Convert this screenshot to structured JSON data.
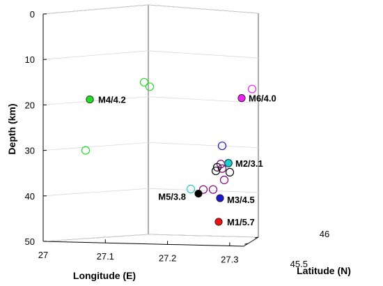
{
  "chart_data": {
    "type": "scatter",
    "projection": "3d",
    "grid": true,
    "axes": {
      "depth": {
        "label": "Depth (km)",
        "range": [
          0,
          50
        ],
        "reversed": true,
        "ticks": [
          "0",
          "10",
          "20",
          "30",
          "40",
          "50"
        ]
      },
      "longitude": {
        "label": "Longitude (E)",
        "range": [
          27.0,
          27.3
        ],
        "ticks": [
          "27",
          "27.1",
          "27.2",
          "27.3"
        ]
      },
      "latitude": {
        "label": "Latitude (N)",
        "range": [
          45.5,
          46.0
        ],
        "ticks": [
          "45.5",
          "46"
        ]
      }
    },
    "main_events": [
      {
        "name": "M4/4.2",
        "color": "#22dd22",
        "depth": 18.8
      },
      {
        "name": "M6/4.0",
        "color": "#ee22ee",
        "depth": 18.5
      },
      {
        "name": "M2/3.1",
        "color": "#22cccc",
        "depth": 32.8
      },
      {
        "name": "M5/3.8",
        "color": "#000000",
        "depth": 39.5
      },
      {
        "name": "M3/4.5",
        "color": "#1a1acc",
        "depth": 40.5
      },
      {
        "name": "M1/5.7",
        "color": "#ee1111",
        "depth": 45.7
      }
    ],
    "other_events": [
      {
        "group": "M4",
        "color": "#22dd22",
        "depth": 15.0
      },
      {
        "group": "M4",
        "color": "#22dd22",
        "depth": 16.0
      },
      {
        "group": "M4",
        "color": "#22dd22",
        "depth": 30.0
      },
      {
        "group": "M6",
        "color": "#ee22ee",
        "depth": 16.5
      },
      {
        "group": "M2",
        "color": "#1a1acc",
        "depth": 29.0
      },
      {
        "group": "M2",
        "color": "#800080",
        "depth": 33.0
      },
      {
        "group": "M2",
        "color": "#22cccc",
        "depth": 32.8
      },
      {
        "group": "M2",
        "color": "#000000",
        "depth": 33.7
      },
      {
        "group": "M2",
        "color": "#800080",
        "depth": 34.0
      },
      {
        "group": "M2",
        "color": "#000000",
        "depth": 34.5
      },
      {
        "group": "M2",
        "color": "#000000",
        "depth": 34.8
      },
      {
        "group": "M5",
        "color": "#800080",
        "depth": 36.5
      },
      {
        "group": "M5",
        "color": "#22cccc",
        "depth": 38.5
      },
      {
        "group": "M5",
        "color": "#800080",
        "depth": 38.6
      },
      {
        "group": "M5",
        "color": "#800080",
        "depth": 38.6
      }
    ]
  }
}
